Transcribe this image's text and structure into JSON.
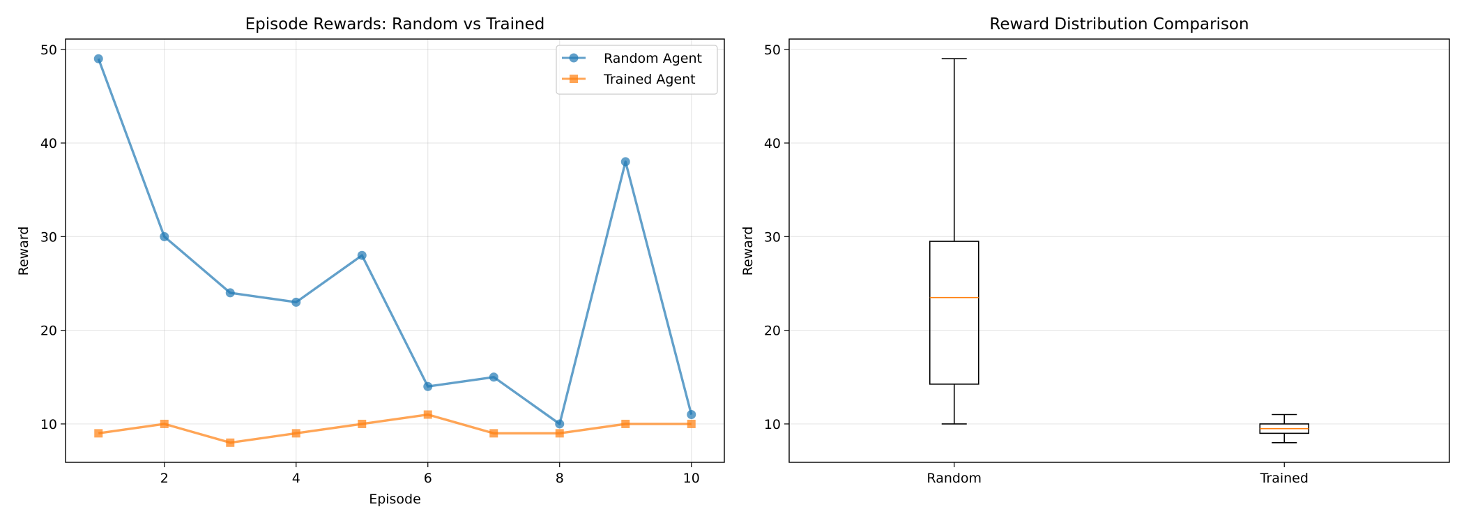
{
  "colors": {
    "random": "#1f77b4",
    "trained": "#ff7f0e",
    "median": "#ff7f0e",
    "box": "#000000"
  },
  "chart_data": [
    {
      "type": "line",
      "title": "Episode Rewards: Random vs Trained",
      "xlabel": "Episode",
      "ylabel": "Reward",
      "x": [
        1,
        2,
        3,
        4,
        5,
        6,
        7,
        8,
        9,
        10
      ],
      "xlim": [
        0.5,
        10.5
      ],
      "ylim": [
        5.9,
        51.1
      ],
      "xticks": [
        2,
        4,
        6,
        8,
        10
      ],
      "yticks": [
        10,
        20,
        30,
        40,
        50
      ],
      "grid": true,
      "legend_position": "top-right",
      "series": [
        {
          "name": "Random Agent",
          "marker": "circle",
          "color": "#1f77b4",
          "values": [
            49,
            30,
            24,
            23,
            28,
            14,
            15,
            10,
            38,
            11
          ]
        },
        {
          "name": "Trained Agent",
          "marker": "square",
          "color": "#ff7f0e",
          "values": [
            9,
            10,
            8,
            9,
            10,
            11,
            9,
            9,
            10,
            10
          ]
        }
      ]
    },
    {
      "type": "box",
      "title": "Reward Distribution Comparison",
      "xlabel": "",
      "ylabel": "Reward",
      "categories": [
        "Random",
        "Trained"
      ],
      "ylim": [
        5.9,
        51.1
      ],
      "yticks": [
        10,
        20,
        30,
        40,
        50
      ],
      "grid": true,
      "boxes": [
        {
          "label": "Random",
          "min": 10,
          "q1": 14.25,
          "median": 23.5,
          "q3": 29.5,
          "max": 49
        },
        {
          "label": "Trained",
          "min": 8,
          "q1": 9,
          "median": 9.5,
          "q3": 10,
          "max": 11
        }
      ]
    }
  ]
}
